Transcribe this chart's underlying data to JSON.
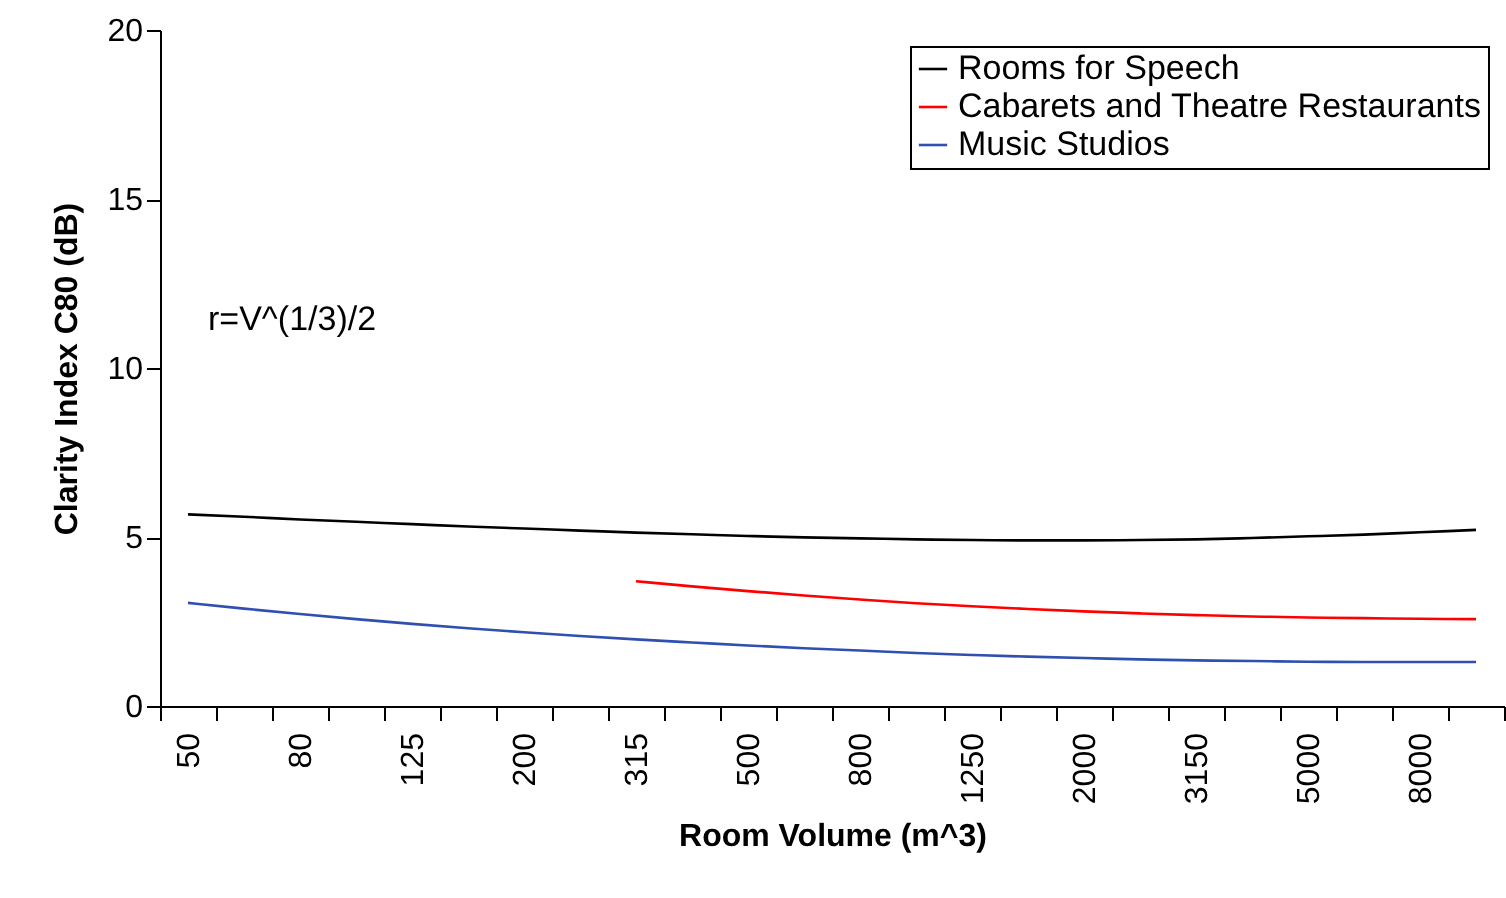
{
  "chart_data": {
    "type": "line",
    "xlabel": "Room Volume (m^3)",
    "ylabel": "Clarity Index C80 (dB)",
    "categories": [
      "50",
      null,
      "80",
      null,
      "125",
      null,
      "200",
      null,
      "315",
      null,
      "500",
      null,
      "800",
      null,
      "1250",
      null,
      "2000",
      null,
      "3150",
      null,
      "5000",
      null,
      "8000",
      null
    ],
    "series": [
      {
        "name": "Rooms for Speech",
        "color": "#000000",
        "values": [
          5.67,
          5.6,
          5.52,
          5.45,
          5.38,
          5.31,
          5.25,
          5.19,
          5.13,
          5.08,
          5.03,
          4.99,
          4.96,
          4.93,
          4.91,
          4.9,
          4.9,
          4.91,
          4.93,
          4.97,
          5.02,
          5.07,
          5.14,
          5.21
        ]
      },
      {
        "name": "Cabarets and Theatre Restaurants",
        "color": "#ff0000",
        "values": [
          null,
          null,
          null,
          null,
          null,
          null,
          null,
          null,
          3.69,
          3.54,
          3.4,
          3.27,
          3.15,
          3.04,
          2.95,
          2.87,
          2.8,
          2.74,
          2.69,
          2.65,
          2.62,
          2.6,
          2.58,
          2.57
        ]
      },
      {
        "name": "Music Studios",
        "color": "#3050b0",
        "values": [
          3.05,
          2.88,
          2.72,
          2.57,
          2.43,
          2.3,
          2.18,
          2.07,
          1.97,
          1.88,
          1.79,
          1.71,
          1.64,
          1.57,
          1.51,
          1.46,
          1.42,
          1.38,
          1.35,
          1.33,
          1.31,
          1.3,
          1.3,
          1.3
        ]
      }
    ],
    "ylim": [
      0,
      20
    ],
    "yticks": [
      0,
      5,
      10,
      15,
      20
    ],
    "grid": false,
    "legend": "top right",
    "marker": "none",
    "line_style": "solid",
    "annotations": [
      "r=V^(1/3)/2"
    ]
  }
}
